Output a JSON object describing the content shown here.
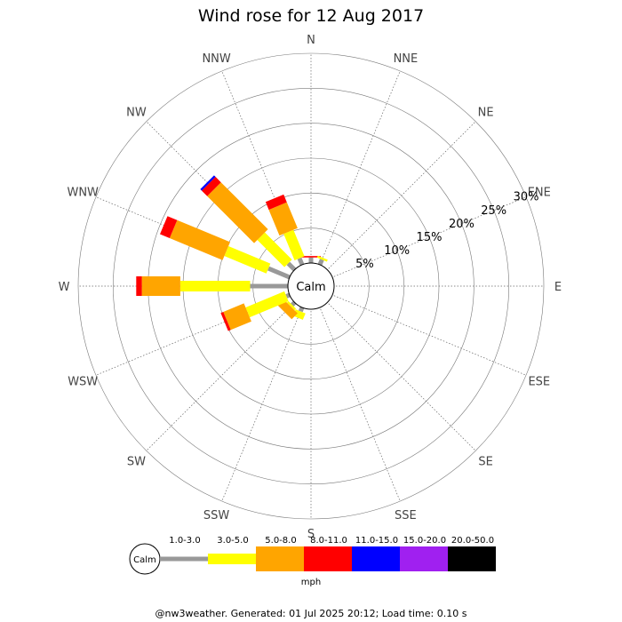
{
  "chart_data": {
    "type": "wind-rose",
    "title": "Wind rose for 12 Aug 2017",
    "center_label": "Calm",
    "directions": [
      "N",
      "NNE",
      "NE",
      "ENE",
      "E",
      "ESE",
      "SE",
      "SSE",
      "S",
      "SSW",
      "SW",
      "WSW",
      "W",
      "WNW",
      "NW",
      "NNW"
    ],
    "radial_ticks": [
      "5%",
      "10%",
      "15%",
      "20%",
      "25%",
      "30%"
    ],
    "radial_max": 30,
    "units": "mph",
    "bins": [
      {
        "label": "1.0-3.0",
        "color": "#999999"
      },
      {
        "label": "3.0-5.0",
        "color": "#ffff00"
      },
      {
        "label": "5.0-8.0",
        "color": "#ffa500"
      },
      {
        "label": "8.0-11.0",
        "color": "#ff0000"
      },
      {
        "label": "11.0-15.0",
        "color": "#0000ff"
      },
      {
        "label": "15.0-20.0",
        "color": "#a020f0"
      },
      {
        "label": "20.0-50.0",
        "color": "#000000"
      }
    ],
    "values": {
      "N": [
        0.8,
        0.0,
        0.0,
        0.2,
        0,
        0,
        0
      ],
      "NNE": [
        0.8,
        0.3,
        0.0,
        0.0,
        0,
        0,
        0
      ],
      "NE": [
        0,
        0,
        0,
        0,
        0,
        0,
        0
      ],
      "ENE": [
        0,
        0,
        0,
        0,
        0,
        0,
        0
      ],
      "E": [
        0,
        0,
        0,
        0,
        0,
        0,
        0
      ],
      "ESE": [
        0,
        0,
        0,
        0,
        0,
        0,
        0
      ],
      "SE": [
        0,
        0,
        0,
        0,
        0,
        0,
        0
      ],
      "SSE": [
        0,
        0,
        0,
        0,
        0,
        0,
        0
      ],
      "S": [
        0,
        0,
        0,
        0,
        0,
        0,
        0
      ],
      "SSW": [
        0.6,
        1.0,
        0.0,
        0.0,
        0,
        0,
        0
      ],
      "SW": [
        0.5,
        0.3,
        1.2,
        0.0,
        0,
        0,
        0
      ],
      "WSW": [
        0.5,
        6.0,
        3.2,
        0.4,
        0,
        0,
        0
      ],
      "W": [
        5.4,
        10.0,
        5.5,
        0.8,
        0,
        0,
        0
      ],
      "WNW": [
        3.3,
        6.5,
        8.2,
        1.5,
        0,
        0,
        0
      ],
      "NW": [
        1.3,
        5.5,
        9.5,
        1.1,
        0.3,
        0,
        0
      ],
      "NNW": [
        1.0,
        4.1,
        4.0,
        1.2,
        0,
        0,
        0
      ]
    }
  },
  "footer": "@nw3weather.  Generated: 01 Jul 2025 20:12; Load time: 0.10 s"
}
